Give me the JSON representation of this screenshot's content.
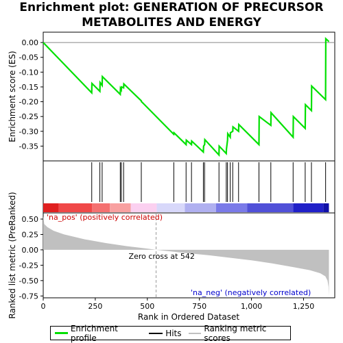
{
  "title": "Enrichment plot: GENERATION OF PRECURSOR METABOLITES AND ENERGY",
  "legend": {
    "items": [
      {
        "label": "Enrichment profile",
        "color": "#00e000"
      },
      {
        "label": "Hits",
        "color": "#000000"
      },
      {
        "label": "Ranking metric scores",
        "color": "#c0c0c0"
      }
    ]
  },
  "chart_data": {
    "type": "line",
    "x_label": "Rank in Ordered Dataset",
    "x_range": [
      0,
      1400
    ],
    "x_ticks": [
      0,
      250,
      500,
      750,
      1000,
      1250
    ],
    "x_tick_labels": [
      "0",
      "250",
      "500",
      "750",
      "1,000",
      "1,250"
    ],
    "es_panel": {
      "y_label": "Enrichment score (ES)",
      "y_range": [
        -0.4,
        0.035
      ],
      "y_ticks": [
        0.0,
        -0.05,
        -0.1,
        -0.15,
        -0.2,
        -0.25,
        -0.3,
        -0.35
      ],
      "y_tick_labels": [
        "0.00",
        "-0.05",
        "-0.10",
        "-0.15",
        "-0.20",
        "-0.25",
        "-0.30",
        "-0.35"
      ],
      "line_color": "#00e000",
      "profile": [
        [
          0,
          0.0
        ],
        [
          233,
          -0.17
        ],
        [
          234,
          -0.138
        ],
        [
          272,
          -0.165
        ],
        [
          273,
          -0.135
        ],
        [
          283,
          -0.145
        ],
        [
          284,
          -0.115
        ],
        [
          370,
          -0.175
        ],
        [
          371,
          -0.155
        ],
        [
          375,
          -0.16
        ],
        [
          376,
          -0.15
        ],
        [
          386,
          -0.153
        ],
        [
          387,
          -0.14
        ],
        [
          471,
          -0.197
        ],
        [
          472,
          -0.2
        ],
        [
          475,
          -0.202
        ],
        [
          627,
          -0.31
        ],
        [
          628,
          -0.305
        ],
        [
          686,
          -0.345
        ],
        [
          687,
          -0.33
        ],
        [
          712,
          -0.345
        ],
        [
          713,
          -0.333
        ],
        [
          769,
          -0.37
        ],
        [
          770,
          -0.35
        ],
        [
          775,
          -0.345
        ],
        [
          776,
          -0.328
        ],
        [
          844,
          -0.38
        ],
        [
          845,
          -0.35
        ],
        [
          879,
          -0.375
        ],
        [
          880,
          -0.36
        ],
        [
          885,
          -0.33
        ],
        [
          886,
          -0.308
        ],
        [
          898,
          -0.32
        ],
        [
          899,
          -0.305
        ],
        [
          910,
          -0.3
        ],
        [
          911,
          -0.285
        ],
        [
          938,
          -0.3
        ],
        [
          939,
          -0.277
        ],
        [
          1036,
          -0.345
        ],
        [
          1037,
          -0.25
        ],
        [
          1093,
          -0.28
        ],
        [
          1094,
          -0.237
        ],
        [
          1200,
          -0.32
        ],
        [
          1201,
          -0.25
        ],
        [
          1258,
          -0.29
        ],
        [
          1259,
          -0.21
        ],
        [
          1288,
          -0.23
        ],
        [
          1289,
          -0.147
        ],
        [
          1356,
          -0.193
        ],
        [
          1357,
          0.013
        ],
        [
          1372,
          0.003
        ]
      ]
    },
    "hits_panel": {
      "hits": [
        233,
        272,
        283,
        370,
        375,
        386,
        471,
        627,
        686,
        712,
        769,
        775,
        844,
        879,
        885,
        898,
        910,
        938,
        1036,
        1093,
        1200,
        1258,
        1288,
        1356
      ]
    },
    "metric_panel": {
      "y_label": "Ranked list metric (PreRanked)",
      "y_range": [
        -0.78,
        0.6
      ],
      "y_ticks": [
        0.5,
        0.25,
        0.0,
        -0.25,
        -0.5,
        -0.75
      ],
      "y_tick_labels": [
        "0.50",
        "0.25",
        "0.00",
        "-0.25",
        "-0.50",
        "-0.75"
      ],
      "area_color": "#c0c0c0",
      "profile": [
        [
          0,
          0.55
        ],
        [
          5,
          0.42
        ],
        [
          20,
          0.37
        ],
        [
          50,
          0.31
        ],
        [
          100,
          0.25
        ],
        [
          200,
          0.17
        ],
        [
          300,
          0.11
        ],
        [
          400,
          0.06
        ],
        [
          500,
          0.02
        ],
        [
          542,
          0.0
        ],
        [
          650,
          -0.04
        ],
        [
          800,
          -0.09
        ],
        [
          900,
          -0.13
        ],
        [
          1000,
          -0.17
        ],
        [
          1100,
          -0.22
        ],
        [
          1200,
          -0.28
        ],
        [
          1280,
          -0.33
        ],
        [
          1330,
          -0.38
        ],
        [
          1355,
          -0.43
        ],
        [
          1365,
          -0.5
        ],
        [
          1370,
          -0.6
        ],
        [
          1372,
          -0.75
        ]
      ],
      "zero_cross_label": "Zero cross at 542",
      "zero_cross_rank": 542,
      "pos_label": "'na_pos' (positively correlated)",
      "neg_label": "'na_neg' (negatively correlated)"
    },
    "colorbar": [
      {
        "from": 0,
        "to": 75,
        "color": "#e02020"
      },
      {
        "from": 75,
        "to": 235,
        "color": "#f04848"
      },
      {
        "from": 235,
        "to": 320,
        "color": "#f47070"
      },
      {
        "from": 320,
        "to": 420,
        "color": "#f8a0a0"
      },
      {
        "from": 420,
        "to": 545,
        "color": "#fbd0f0"
      },
      {
        "from": 545,
        "to": 680,
        "color": "#d8d8fa"
      },
      {
        "from": 680,
        "to": 830,
        "color": "#b0b0f0"
      },
      {
        "from": 830,
        "to": 980,
        "color": "#7a7ae8"
      },
      {
        "from": 980,
        "to": 1200,
        "color": "#5050d8"
      },
      {
        "from": 1200,
        "to": 1345,
        "color": "#2020c8"
      },
      {
        "from": 1345,
        "to": 1372,
        "color": "#1010a8"
      }
    ]
  }
}
